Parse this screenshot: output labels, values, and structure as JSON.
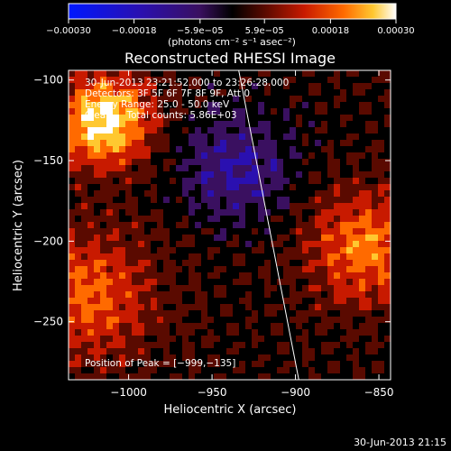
{
  "chart_data": {
    "type": "heatmap",
    "title": "Reconstructed RHESSI Image",
    "xlabel": "Heliocentric X (arcsec)",
    "ylabel": "Heliocentric Y (arcsec)",
    "xlim": [
      -1036,
      -843
    ],
    "ylim": [
      -286,
      -94
    ],
    "x_ticks": [
      -1000,
      -950,
      -900,
      -850
    ],
    "x_tick_labels": [
      "−1000",
      "−950",
      "−900",
      "−850"
    ],
    "y_ticks": [
      -100,
      -150,
      -200,
      -250
    ],
    "y_tick_labels": [
      "−100",
      "−150",
      "−200",
      "−250"
    ],
    "colorbar": {
      "range": [
        -0.0003,
        0.0003
      ],
      "ticks": [
        -0.0003,
        -0.00018,
        -5.9e-05,
        5.9e-05,
        0.00018,
        0.0003
      ],
      "tick_labels": [
        "−0.00030",
        "−0.00018",
        "−5.9e−05",
        "5.9e−05",
        "0.00018",
        "0.00030"
      ],
      "units": "(photons cm⁻² s⁻¹ asec⁻²)"
    },
    "annotations": [
      "30-Jun-2013 23:21:52.000 to 23:26:28.000",
      "Detectors: 3F 5F 6F 7F 8F 9F, Att 0",
      "Energy Range: 25.0 - 50.0 keV",
      "Clean     Total counts: 5.86E+03"
    ],
    "peak_label": "Position of Peak = [−999,−135]",
    "limb_line": {
      "x": [
        -934,
        -898
      ],
      "y": [
        -94,
        -286
      ]
    }
  },
  "timestamp": "30-Jun-2013 21:15",
  "colors": {
    "background": "#000000",
    "foreground": "#ffffff",
    "colormap": [
      "#0018ff",
      "#2a10b0",
      "#3a1060",
      "#000000",
      "#5a0a00",
      "#c81a00",
      "#ff6a00",
      "#ffc830",
      "#ffffff"
    ]
  }
}
